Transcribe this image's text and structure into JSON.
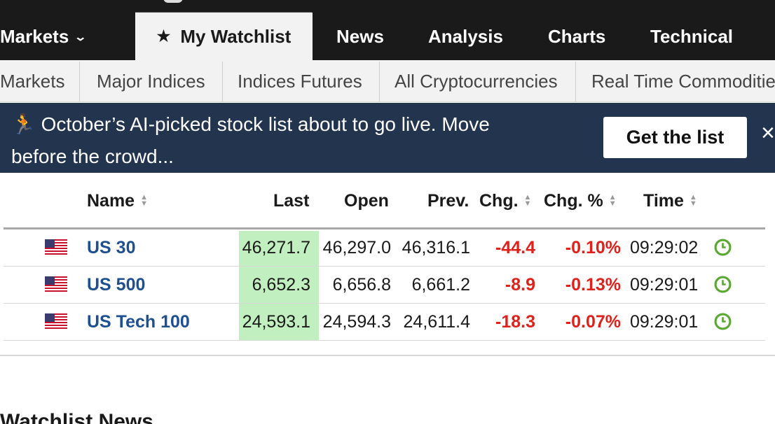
{
  "topnav": {
    "items": [
      {
        "label": "Markets"
      },
      {
        "label": "My Watchlist"
      },
      {
        "label": "News"
      },
      {
        "label": "Analysis"
      },
      {
        "label": "Charts"
      },
      {
        "label": "Technical"
      }
    ],
    "active": "My Watchlist"
  },
  "subnav": {
    "items": [
      "Markets",
      "Major Indices",
      "Indices Futures",
      "All Cryptocurrencies",
      "Real Time Commodities"
    ]
  },
  "banner": {
    "emoji": "🏃",
    "line1": "October’s AI-picked stock list about to go live. Move",
    "line2": "before the crowd...",
    "button_label": "Get the list",
    "close_symbol": "×",
    "background_color": "#23344f"
  },
  "table": {
    "columns": [
      "Name",
      "Last",
      "Open",
      "Prev.",
      "Chg.",
      "Chg. %",
      "Time"
    ],
    "rows": [
      {
        "name": "US 30",
        "last": "46,271.7",
        "open": "46,297.0",
        "prev": "46,316.1",
        "chg": "-44.4",
        "chg_pct": "-0.10%",
        "time": "09:29:02"
      },
      {
        "name": "US 500",
        "last": "6,652.3",
        "open": "6,656.8",
        "prev": "6,661.2",
        "chg": "-8.9",
        "chg_pct": "-0.13%",
        "time": "09:29:01"
      },
      {
        "name": "US Tech 100",
        "last": "24,593.1",
        "open": "24,594.3",
        "prev": "24,611.4",
        "chg": "-18.3",
        "chg_pct": "-0.07%",
        "time": "09:29:01"
      }
    ],
    "colors": {
      "negative": "#e0201b",
      "last_highlight": "#c2efc0",
      "link": "#1d4f91",
      "clock": "#5aa832"
    }
  },
  "section": {
    "title": "Watchlist News"
  }
}
